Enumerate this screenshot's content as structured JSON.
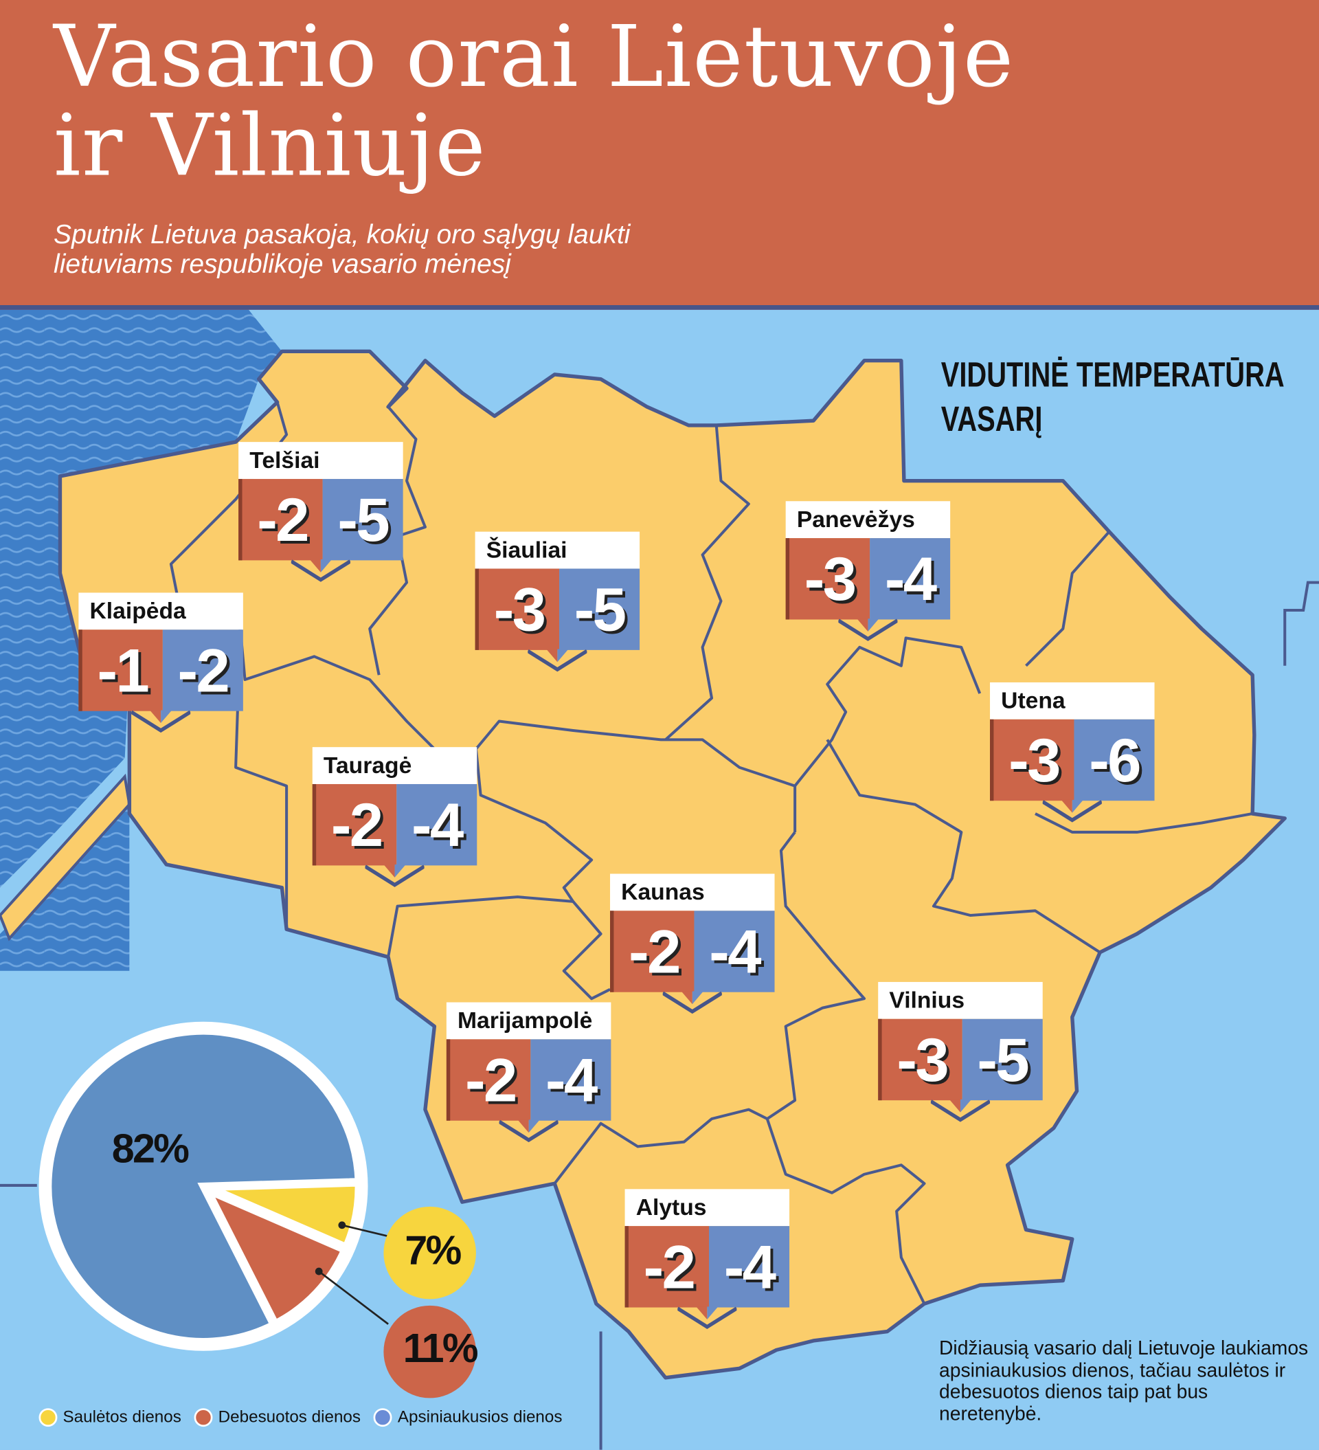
{
  "header": {
    "title_line1": "Vasario orai Lietuvoje",
    "title_line2": "ir Vilniuje",
    "subtitle_line1": "Sputnik Lietuva pasakoja, kokių oro sąlygų laukti",
    "subtitle_line2": "lietuviams respublikoje vasario mėnesį"
  },
  "map": {
    "heading_line1": "VIDUTINĖ TEMPERATŪRA",
    "heading_line2": "VASARĮ",
    "cities": [
      {
        "name": "Telšiai",
        "high": "-2",
        "low": "-5"
      },
      {
        "name": "Klaipėda",
        "high": "-1",
        "low": "-2"
      },
      {
        "name": "Šiauliai",
        "high": "-3",
        "low": "-5"
      },
      {
        "name": "Panevėžys",
        "high": "-3",
        "low": "-4"
      },
      {
        "name": "Utena",
        "high": "-3",
        "low": "-6"
      },
      {
        "name": "Tauragė",
        "high": "-2",
        "low": "-4"
      },
      {
        "name": "Kaunas",
        "high": "-2",
        "low": "-4"
      },
      {
        "name": "Marijampolė",
        "high": "-2",
        "low": "-4"
      },
      {
        "name": "Vilnius",
        "high": "-3",
        "low": "-5"
      },
      {
        "name": "Alytus",
        "high": "-2",
        "low": "-4"
      }
    ]
  },
  "chart_data": {
    "type": "pie",
    "slices": [
      {
        "label": "Apsiniaukusios dienos",
        "value": 82,
        "display": "82%",
        "color": "#5f8fc4"
      },
      {
        "label": "Saulėtos dienos",
        "value": 7,
        "display": "7%",
        "color": "#f7d53e"
      },
      {
        "label": "Debesuotos dienos",
        "value": 11,
        "display": "11%",
        "color": "#cc6549"
      }
    ],
    "legend": [
      "Saulėtos dienos",
      "Debesuotos dienos",
      "Apsiniaukusios dienos"
    ],
    "legend_colors": [
      "#f7d53e",
      "#cc6549",
      "#6a8cd6"
    ]
  },
  "note": "Didžiausią vasario dalį Lietuvoje laukiamos apsiniaukusios  dienos, tačiau saulėtos ir debesuotos dienos taip pat bus neretenybė.",
  "colors": {
    "header": "#cc6649",
    "sea": "#8fcbf3",
    "land": "#fbcd6b",
    "border": "#4a5a8f"
  }
}
